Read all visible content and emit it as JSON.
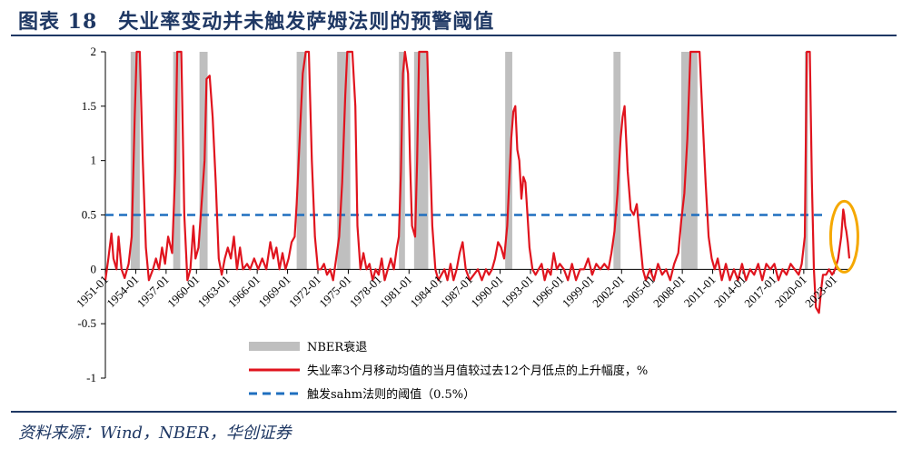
{
  "header": {
    "title": "图表 18　失业率变动并未触发萨姆法则的预警阈值"
  },
  "footer": {
    "source": "资料来源：Wind，NBER，华创证券"
  },
  "colors": {
    "accent": "#1f3864",
    "series": "#e0141e",
    "threshold": "#1f6fbf",
    "recession": "#bfbfbf",
    "highlight": "#f5a800"
  },
  "chart_data": {
    "type": "line",
    "title": "",
    "xlabel": "",
    "ylabel": "",
    "ylim": [
      -1,
      2
    ],
    "yticks": [
      {
        "value": 2,
        "label": "2"
      },
      {
        "value": 1.5,
        "label": "1.5"
      },
      {
        "value": 1,
        "label": "1"
      },
      {
        "value": 0.5,
        "label": "0.5"
      },
      {
        "value": 0,
        "label": "0"
      },
      {
        "value": -0.5,
        "label": "-0.5"
      },
      {
        "value": -1,
        "label": "-1"
      }
    ],
    "xrange": [
      1951.0,
      2024.5
    ],
    "xticks": [
      {
        "value": 1951,
        "label": "1951-01"
      },
      {
        "value": 1954,
        "label": "1954-01"
      },
      {
        "value": 1957,
        "label": "1957-01"
      },
      {
        "value": 1960,
        "label": "1960-01"
      },
      {
        "value": 1963,
        "label": "1963-01"
      },
      {
        "value": 1966,
        "label": "1966-01"
      },
      {
        "value": 1969,
        "label": "1969-01"
      },
      {
        "value": 1972,
        "label": "1972-01"
      },
      {
        "value": 1975,
        "label": "1975-01"
      },
      {
        "value": 1978,
        "label": "1978-01"
      },
      {
        "value": 1981,
        "label": "1981-01"
      },
      {
        "value": 1984,
        "label": "1984-01"
      },
      {
        "value": 1987,
        "label": "1987-01"
      },
      {
        "value": 1990,
        "label": "1990-01"
      },
      {
        "value": 1993,
        "label": "1993-01"
      },
      {
        "value": 1996,
        "label": "1996-01"
      },
      {
        "value": 1999,
        "label": "1999-01"
      },
      {
        "value": 2002,
        "label": "2002-01"
      },
      {
        "value": 2005,
        "label": "2005-01"
      },
      {
        "value": 2008,
        "label": "2008-01"
      },
      {
        "value": 2011,
        "label": "2011-01"
      },
      {
        "value": 2014,
        "label": "2014-01"
      },
      {
        "value": 2017,
        "label": "2017-01"
      },
      {
        "value": 2020,
        "label": "2020-01"
      },
      {
        "value": 2023,
        "label": "2023-01"
      }
    ],
    "recessions": [
      {
        "start": 1953.5,
        "end": 1954.4
      },
      {
        "start": 1957.7,
        "end": 1958.4
      },
      {
        "start": 1960.3,
        "end": 1961.1
      },
      {
        "start": 1969.9,
        "end": 1970.9
      },
      {
        "start": 1973.9,
        "end": 1975.2
      },
      {
        "start": 1980.0,
        "end": 1980.6
      },
      {
        "start": 1981.5,
        "end": 1982.9
      },
      {
        "start": 1990.5,
        "end": 1991.2
      },
      {
        "start": 2001.2,
        "end": 2001.9
      },
      {
        "start": 2007.9,
        "end": 2009.5
      },
      {
        "start": 2020.1,
        "end": 2020.4
      }
    ],
    "threshold": {
      "value": 0.5
    },
    "series": [
      {
        "name": "失业率3个月移动均值的当月值较过去12个月低点的上升幅度，%",
        "points": [
          [
            1951.0,
            -0.1
          ],
          [
            1951.3,
            0.1
          ],
          [
            1951.6,
            0.33
          ],
          [
            1951.8,
            0.1
          ],
          [
            1952.1,
            0.0
          ],
          [
            1952.3,
            0.3
          ],
          [
            1952.6,
            0.0
          ],
          [
            1952.9,
            -0.08
          ],
          [
            1953.3,
            0.05
          ],
          [
            1953.6,
            0.3
          ],
          [
            1953.9,
            1.4
          ],
          [
            1954.1,
            2.0
          ],
          [
            1954.4,
            2.0
          ],
          [
            1954.7,
            1.0
          ],
          [
            1955.0,
            0.2
          ],
          [
            1955.3,
            -0.1
          ],
          [
            1955.7,
            0.0
          ],
          [
            1956.0,
            0.1
          ],
          [
            1956.3,
            0.0
          ],
          [
            1956.6,
            0.2
          ],
          [
            1956.9,
            0.05
          ],
          [
            1957.2,
            0.3
          ],
          [
            1957.6,
            0.15
          ],
          [
            1957.9,
            0.9
          ],
          [
            1958.1,
            2.0
          ],
          [
            1958.5,
            2.0
          ],
          [
            1958.8,
            0.5
          ],
          [
            1959.1,
            -0.1
          ],
          [
            1959.4,
            0.0
          ],
          [
            1959.7,
            0.4
          ],
          [
            1959.9,
            0.1
          ],
          [
            1960.2,
            0.2
          ],
          [
            1960.5,
            0.6
          ],
          [
            1960.8,
            1.0
          ],
          [
            1961.0,
            1.75
          ],
          [
            1961.3,
            1.78
          ],
          [
            1961.6,
            1.4
          ],
          [
            1961.9,
            0.8
          ],
          [
            1962.2,
            0.1
          ],
          [
            1962.5,
            -0.05
          ],
          [
            1962.8,
            0.1
          ],
          [
            1963.1,
            0.2
          ],
          [
            1963.4,
            0.1
          ],
          [
            1963.7,
            0.3
          ],
          [
            1964.0,
            0.0
          ],
          [
            1964.3,
            0.2
          ],
          [
            1964.6,
            0.0
          ],
          [
            1965.0,
            0.05
          ],
          [
            1965.3,
            0.0
          ],
          [
            1965.7,
            0.1
          ],
          [
            1966.1,
            0.0
          ],
          [
            1966.5,
            0.1
          ],
          [
            1966.9,
            0.0
          ],
          [
            1967.3,
            0.25
          ],
          [
            1967.6,
            0.1
          ],
          [
            1967.9,
            0.2
          ],
          [
            1968.2,
            0.0
          ],
          [
            1968.5,
            0.15
          ],
          [
            1968.8,
            0.0
          ],
          [
            1969.1,
            0.1
          ],
          [
            1969.4,
            0.25
          ],
          [
            1969.7,
            0.3
          ],
          [
            1969.9,
            0.6
          ],
          [
            1970.2,
            1.2
          ],
          [
            1970.5,
            1.8
          ],
          [
            1970.8,
            2.0
          ],
          [
            1971.1,
            2.0
          ],
          [
            1971.4,
            1.0
          ],
          [
            1971.7,
            0.3
          ],
          [
            1972.0,
            0.0
          ],
          [
            1972.3,
            0.0
          ],
          [
            1972.6,
            0.05
          ],
          [
            1972.9,
            -0.05
          ],
          [
            1973.2,
            0.0
          ],
          [
            1973.5,
            -0.1
          ],
          [
            1973.8,
            0.1
          ],
          [
            1974.1,
            0.3
          ],
          [
            1974.4,
            0.8
          ],
          [
            1974.7,
            1.6
          ],
          [
            1974.9,
            2.0
          ],
          [
            1975.4,
            2.0
          ],
          [
            1975.7,
            1.5
          ],
          [
            1975.9,
            0.4
          ],
          [
            1976.2,
            0.0
          ],
          [
            1976.5,
            0.15
          ],
          [
            1976.8,
            0.0
          ],
          [
            1977.1,
            0.05
          ],
          [
            1977.4,
            -0.1
          ],
          [
            1977.7,
            0.0
          ],
          [
            1978.0,
            -0.05
          ],
          [
            1978.3,
            0.1
          ],
          [
            1978.6,
            -0.1
          ],
          [
            1978.9,
            0.0
          ],
          [
            1979.2,
            0.1
          ],
          [
            1979.5,
            0.0
          ],
          [
            1979.8,
            0.2
          ],
          [
            1980.0,
            0.3
          ],
          [
            1980.2,
            0.9
          ],
          [
            1980.4,
            1.8
          ],
          [
            1980.6,
            2.0
          ],
          [
            1980.9,
            1.8
          ],
          [
            1981.1,
            1.0
          ],
          [
            1981.3,
            0.4
          ],
          [
            1981.6,
            0.3
          ],
          [
            1981.8,
            1.0
          ],
          [
            1982.0,
            2.0
          ],
          [
            1982.8,
            2.0
          ],
          [
            1983.0,
            1.3
          ],
          [
            1983.3,
            0.4
          ],
          [
            1983.6,
            0.0
          ],
          [
            1983.9,
            -0.1
          ],
          [
            1984.2,
            -0.05
          ],
          [
            1984.5,
            0.0
          ],
          [
            1984.8,
            -0.1
          ],
          [
            1985.1,
            0.05
          ],
          [
            1985.4,
            -0.1
          ],
          [
            1985.7,
            0.0
          ],
          [
            1986.0,
            0.15
          ],
          [
            1986.3,
            0.25
          ],
          [
            1986.6,
            0.0
          ],
          [
            1987.0,
            -0.1
          ],
          [
            1987.4,
            -0.05
          ],
          [
            1987.8,
            0.0
          ],
          [
            1988.2,
            -0.1
          ],
          [
            1988.6,
            0.0
          ],
          [
            1988.9,
            -0.05
          ],
          [
            1989.2,
            0.0
          ],
          [
            1989.5,
            0.1
          ],
          [
            1989.8,
            0.25
          ],
          [
            1990.1,
            0.2
          ],
          [
            1990.4,
            0.1
          ],
          [
            1990.7,
            0.4
          ],
          [
            1990.9,
            0.8
          ],
          [
            1991.1,
            1.2
          ],
          [
            1991.3,
            1.45
          ],
          [
            1991.5,
            1.5
          ],
          [
            1991.7,
            1.1
          ],
          [
            1991.9,
            1.0
          ],
          [
            1992.1,
            0.65
          ],
          [
            1992.3,
            0.85
          ],
          [
            1992.5,
            0.8
          ],
          [
            1992.7,
            0.5
          ],
          [
            1992.9,
            0.2
          ],
          [
            1993.2,
            0.0
          ],
          [
            1993.5,
            -0.05
          ],
          [
            1993.8,
            0.0
          ],
          [
            1994.1,
            0.05
          ],
          [
            1994.4,
            -0.1
          ],
          [
            1994.7,
            0.0
          ],
          [
            1995.0,
            -0.05
          ],
          [
            1995.3,
            0.15
          ],
          [
            1995.6,
            0.0
          ],
          [
            1995.9,
            0.05
          ],
          [
            1996.3,
            0.0
          ],
          [
            1996.7,
            -0.1
          ],
          [
            1997.1,
            0.05
          ],
          [
            1997.5,
            -0.1
          ],
          [
            1997.9,
            0.0
          ],
          [
            1998.3,
            0.0
          ],
          [
            1998.7,
            0.1
          ],
          [
            1999.1,
            -0.05
          ],
          [
            1999.5,
            0.05
          ],
          [
            1999.9,
            0.0
          ],
          [
            2000.3,
            0.05
          ],
          [
            2000.7,
            0.0
          ],
          [
            2001.0,
            0.15
          ],
          [
            2001.3,
            0.35
          ],
          [
            2001.6,
            0.7
          ],
          [
            2001.9,
            1.2
          ],
          [
            2002.1,
            1.4
          ],
          [
            2002.3,
            1.5
          ],
          [
            2002.6,
            0.9
          ],
          [
            2002.9,
            0.55
          ],
          [
            2003.2,
            0.5
          ],
          [
            2003.5,
            0.6
          ],
          [
            2003.8,
            0.3
          ],
          [
            2004.1,
            0.0
          ],
          [
            2004.4,
            -0.1
          ],
          [
            2004.8,
            0.0
          ],
          [
            2005.2,
            -0.1
          ],
          [
            2005.6,
            0.05
          ],
          [
            2006.0,
            -0.05
          ],
          [
            2006.4,
            0.0
          ],
          [
            2006.8,
            -0.1
          ],
          [
            2007.2,
            0.05
          ],
          [
            2007.6,
            0.15
          ],
          [
            2007.9,
            0.45
          ],
          [
            2008.2,
            0.7
          ],
          [
            2008.5,
            1.2
          ],
          [
            2008.8,
            2.0
          ],
          [
            2009.7,
            2.0
          ],
          [
            2010.0,
            1.4
          ],
          [
            2010.3,
            0.8
          ],
          [
            2010.6,
            0.3
          ],
          [
            2010.9,
            0.1
          ],
          [
            2011.2,
            0.0
          ],
          [
            2011.5,
            0.1
          ],
          [
            2011.9,
            -0.1
          ],
          [
            2012.3,
            0.05
          ],
          [
            2012.7,
            -0.1
          ],
          [
            2013.1,
            0.0
          ],
          [
            2013.5,
            -0.1
          ],
          [
            2013.9,
            0.05
          ],
          [
            2014.3,
            -0.1
          ],
          [
            2014.7,
            0.0
          ],
          [
            2015.1,
            -0.05
          ],
          [
            2015.5,
            0.05
          ],
          [
            2015.9,
            -0.1
          ],
          [
            2016.3,
            0.05
          ],
          [
            2016.7,
            0.0
          ],
          [
            2017.1,
            0.05
          ],
          [
            2017.5,
            -0.1
          ],
          [
            2017.9,
            0.0
          ],
          [
            2018.3,
            -0.05
          ],
          [
            2018.7,
            0.05
          ],
          [
            2019.1,
            0.0
          ],
          [
            2019.5,
            -0.05
          ],
          [
            2019.8,
            0.05
          ],
          [
            2020.1,
            0.3
          ],
          [
            2020.3,
            2.0
          ],
          [
            2020.6,
            2.0
          ],
          [
            2020.8,
            0.8
          ],
          [
            2021.0,
            0.0
          ],
          [
            2021.2,
            -0.35
          ],
          [
            2021.5,
            -0.4
          ],
          [
            2021.7,
            -0.2
          ],
          [
            2021.9,
            -0.05
          ],
          [
            2022.2,
            -0.05
          ],
          [
            2022.5,
            0.0
          ],
          [
            2022.8,
            -0.05
          ],
          [
            2023.1,
            0.0
          ],
          [
            2023.4,
            0.1
          ],
          [
            2023.7,
            0.3
          ],
          [
            2023.9,
            0.55
          ],
          [
            2024.0,
            0.5
          ],
          [
            2024.1,
            0.4
          ],
          [
            2024.2,
            0.35
          ],
          [
            2024.35,
            0.25
          ],
          [
            2024.5,
            0.1
          ]
        ]
      }
    ],
    "legend": {
      "recession": "NBER衰退",
      "series": "失业率3个月移动均值的当月值较过去12个月低点的上升幅度，%",
      "threshold": "触发sahm法则的阈值（0.5%）"
    },
    "highlight": {
      "x_center": 2024.0,
      "y_center": 0.3
    }
  }
}
